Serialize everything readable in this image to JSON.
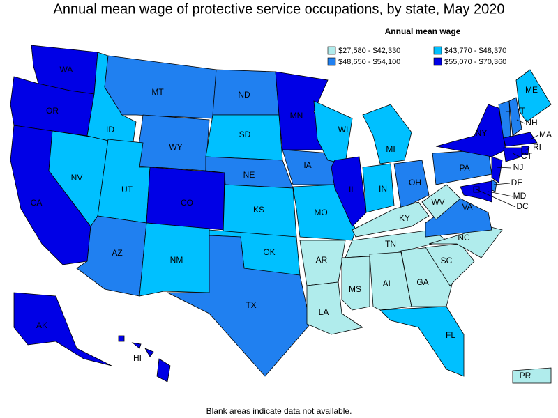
{
  "title": "Annual mean wage of protective service occupations, by state, May 2020",
  "legend": {
    "title": "Annual mean wage",
    "items": [
      {
        "label": "$27,580 - $42,330",
        "color": "#b0ecec"
      },
      {
        "label": "$43,770 - $48,370",
        "color": "#00c0ff"
      },
      {
        "label": "$48,650 - $54,100",
        "color": "#2080f0"
      },
      {
        "label": "$55,070 - $70,360",
        "color": "#0000e6"
      }
    ]
  },
  "states": [
    {
      "label": "WA",
      "color": "#0000e6"
    },
    {
      "label": "OR",
      "color": "#0000e6"
    },
    {
      "label": "CA",
      "color": "#0000e6"
    },
    {
      "label": "NV",
      "color": "#00c0ff"
    },
    {
      "label": "ID",
      "color": "#00c0ff"
    },
    {
      "label": "MT",
      "color": "#2080f0"
    },
    {
      "label": "WY",
      "color": "#2080f0"
    },
    {
      "label": "UT",
      "color": "#00c0ff"
    },
    {
      "label": "CO",
      "color": "#0000e6"
    },
    {
      "label": "AZ",
      "color": "#2080f0"
    },
    {
      "label": "NM",
      "color": "#00c0ff"
    },
    {
      "label": "ND",
      "color": "#2080f0"
    },
    {
      "label": "SD",
      "color": "#00c0ff"
    },
    {
      "label": "NE",
      "color": "#2080f0"
    },
    {
      "label": "KS",
      "color": "#00c0ff"
    },
    {
      "label": "OK",
      "color": "#00c0ff"
    },
    {
      "label": "TX",
      "color": "#2080f0"
    },
    {
      "label": "MN",
      "color": "#0000e6"
    },
    {
      "label": "IA",
      "color": "#2080f0"
    },
    {
      "label": "MO",
      "color": "#00c0ff"
    },
    {
      "label": "AR",
      "color": "#b0ecec"
    },
    {
      "label": "LA",
      "color": "#b0ecec"
    },
    {
      "label": "WI",
      "color": "#00c0ff"
    },
    {
      "label": "IL",
      "color": "#0000e6"
    },
    {
      "label": "MI",
      "color": "#00c0ff"
    },
    {
      "label": "IN",
      "color": "#00c0ff"
    },
    {
      "label": "OH",
      "color": "#2080f0"
    },
    {
      "label": "KY",
      "color": "#b0ecec"
    },
    {
      "label": "TN",
      "color": "#b0ecec"
    },
    {
      "label": "MS",
      "color": "#b0ecec"
    },
    {
      "label": "AL",
      "color": "#b0ecec"
    },
    {
      "label": "GA",
      "color": "#b0ecec"
    },
    {
      "label": "FL",
      "color": "#00c0ff"
    },
    {
      "label": "SC",
      "color": "#b0ecec"
    },
    {
      "label": "NC",
      "color": "#b0ecec"
    },
    {
      "label": "VA",
      "color": "#2080f0"
    },
    {
      "label": "WV",
      "color": "#b0ecec"
    },
    {
      "label": "PA",
      "color": "#2080f0"
    },
    {
      "label": "NY",
      "color": "#0000e6"
    },
    {
      "label": "NJ",
      "color": "#0000e6"
    },
    {
      "label": "DE",
      "color": "#2080f0"
    },
    {
      "label": "MD",
      "color": "#0000e6"
    },
    {
      "label": "DC",
      "color": "#0000e6"
    },
    {
      "label": "ME",
      "color": "#00c0ff"
    },
    {
      "label": "VT",
      "color": "#2080f0"
    },
    {
      "label": "NH",
      "color": "#2080f0"
    },
    {
      "label": "MA",
      "color": "#0000e6"
    },
    {
      "label": "RI",
      "color": "#0000e6"
    },
    {
      "label": "CT",
      "color": "#0000e6"
    },
    {
      "label": "AK",
      "color": "#0000e6"
    },
    {
      "label": "HI",
      "color": "#0000e6"
    },
    {
      "label": "PR",
      "color": "#b0ecec"
    }
  ],
  "footnote": "Blank areas indicate data not available."
}
